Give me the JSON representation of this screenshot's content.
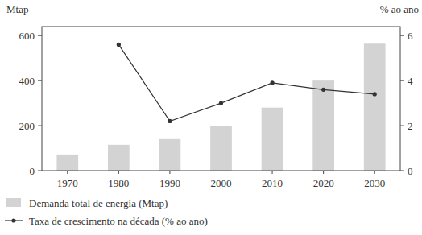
{
  "chart_data": {
    "type": "bar",
    "y_label": "Mtap",
    "y2_label": "% ao ano",
    "categories": [
      "1970",
      "1980",
      "1990",
      "2000",
      "2010",
      "2020",
      "2030"
    ],
    "series": [
      {
        "name": "Demanda total de energia (Mtap)",
        "type": "bar",
        "color": "#d3d3d3",
        "values": [
          72,
          115,
          140,
          198,
          280,
          400,
          564
        ]
      },
      {
        "name": "Taxa de crescimento na década (% ao ano)",
        "type": "line",
        "axis": "y2",
        "color": "#333333",
        "marker": "circle",
        "line_style": "solid",
        "values": [
          null,
          5.6,
          2.2,
          3.0,
          3.9,
          3.6,
          3.4
        ]
      }
    ],
    "ylim": [
      0,
      640
    ],
    "yticks": [
      0,
      200,
      400,
      600
    ],
    "y2lim": [
      0,
      6.4
    ],
    "y2ticks": [
      0,
      2,
      4,
      6
    ],
    "grid": false,
    "legend": "bottom"
  }
}
